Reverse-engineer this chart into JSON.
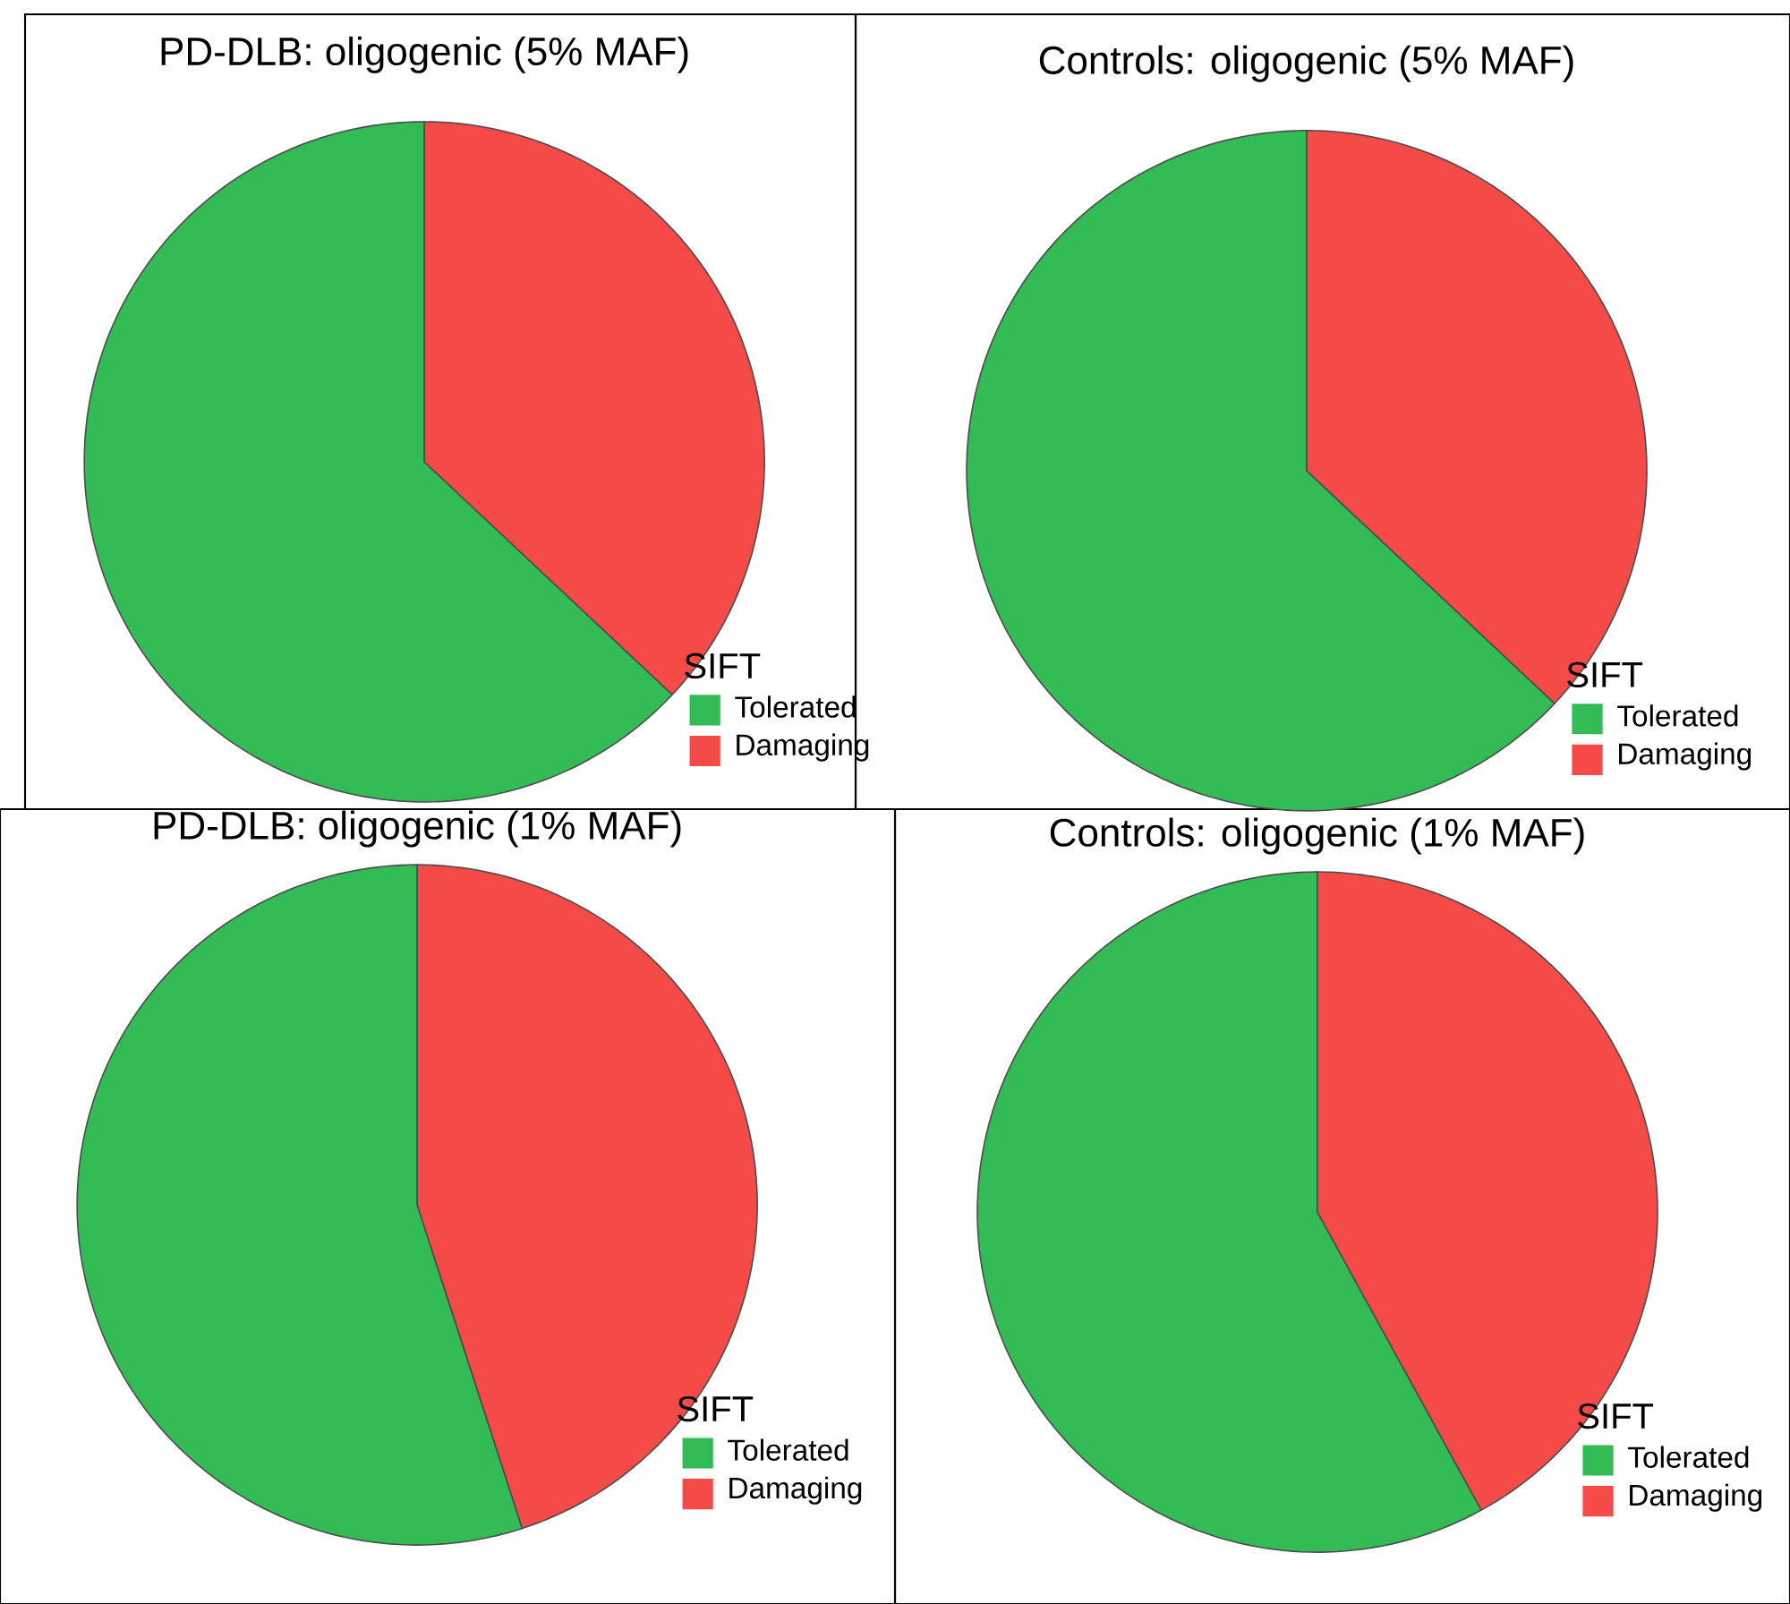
{
  "chart_data": [
    {
      "type": "pie",
      "title": "PD-DLB: oligogenic (5% MAF)",
      "categories": [
        "Tolerated",
        "Damaging"
      ],
      "values": [
        63,
        37
      ],
      "colors": [
        "#33bb55",
        "#f44b49"
      ],
      "legend": "bottom right",
      "legend_title": "SIFT"
    },
    {
      "type": "pie",
      "title": "Controls: oligogenic (5% MAF)",
      "categories": [
        "Tolerated",
        "Damaging"
      ],
      "values": [
        63,
        37
      ],
      "colors": [
        "#33bb55",
        "#f44b49"
      ],
      "legend": "bottom right",
      "legend_title": "SIFT"
    },
    {
      "type": "pie",
      "title": "PD-DLB: oligogenic (1% MAF)",
      "categories": [
        "Tolerated",
        "Damaging"
      ],
      "values": [
        55,
        45
      ],
      "colors": [
        "#33bb55",
        "#f44b49"
      ],
      "legend": "bottom right",
      "legend_title": "SIFT"
    },
    {
      "type": "pie",
      "title": "Controls: oligogenic (1% MAF)",
      "categories": [
        "Tolerated",
        "Damaging"
      ],
      "values": [
        58,
        42
      ],
      "colors": [
        "#33bb55",
        "#f44b49"
      ],
      "legend": "bottom right",
      "legend_title": "SIFT"
    }
  ]
}
